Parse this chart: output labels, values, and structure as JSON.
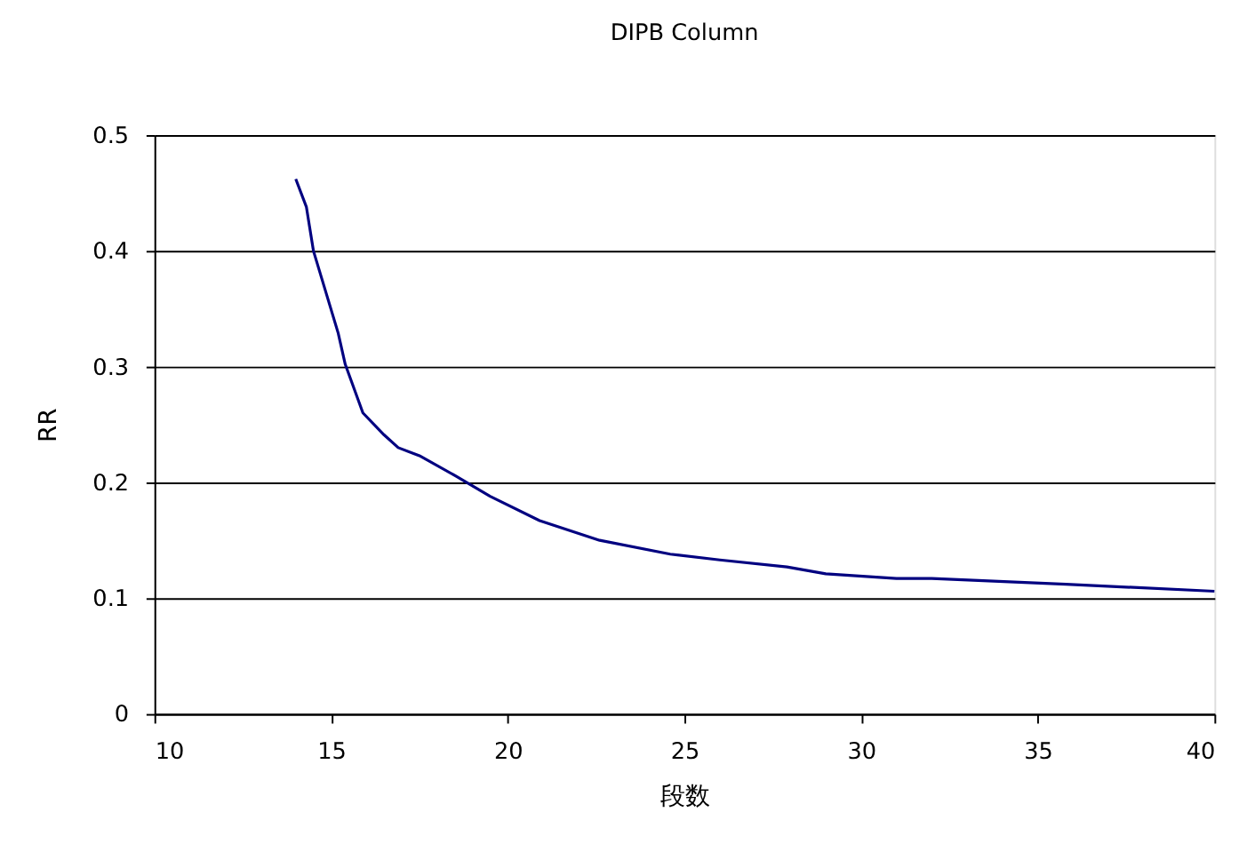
{
  "chart_data": {
    "type": "line",
    "title": "DIPB Column",
    "xlabel": "段数",
    "ylabel": "RR",
    "x": [
      14.0,
      14.3,
      14.5,
      15.2,
      15.4,
      15.9,
      16.5,
      16.9,
      17.5,
      18.5,
      19.5,
      20.9,
      22.6,
      24.6,
      26.0,
      27.9,
      29.0,
      31.0,
      32.0,
      35.8,
      40.0
    ],
    "series": [
      {
        "color": "#000080",
        "values": [
          0.462,
          0.438,
          0.4,
          0.329,
          0.302,
          0.26,
          0.241,
          0.23,
          0.223,
          0.206,
          0.188,
          0.167,
          0.15,
          0.138,
          0.133,
          0.127,
          0.121,
          0.117,
          0.117,
          0.112,
          0.106
        ]
      }
    ],
    "xlim": [
      10,
      40
    ],
    "xticks": [
      10,
      15,
      20,
      25,
      30,
      35,
      40
    ],
    "ylim": [
      0,
      0.5
    ],
    "yticks": [
      0,
      0.1,
      0.2,
      0.3,
      0.4,
      0.5
    ],
    "grid": "y",
    "marker": "none",
    "line_style": "solid"
  }
}
